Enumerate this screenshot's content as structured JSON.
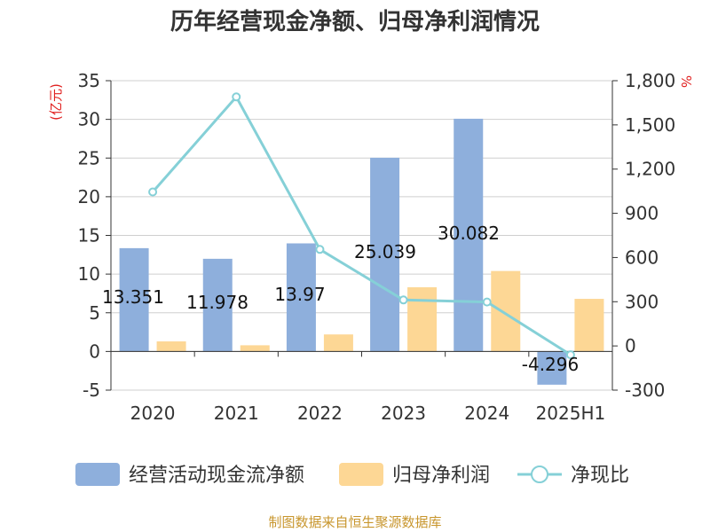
{
  "title": "历年经营现金净额、归母净利润情况",
  "source": "制图数据来自恒生聚源数据库",
  "colors": {
    "cash_flow": "#8eafdc",
    "net_profit": "#fdd795",
    "ratio": "#85d0d7",
    "unit": "#e0201f",
    "source": "#c8962d"
  },
  "chart_data": {
    "type": "bar",
    "categories": [
      "2020",
      "2021",
      "2022",
      "2023",
      "2024",
      "2025H1"
    ],
    "y_left": {
      "unit": "(亿元)",
      "lim": [
        -5,
        35
      ],
      "ticks": [
        "-5",
        "0",
        "5",
        "10",
        "15",
        "20",
        "25",
        "30",
        "35"
      ]
    },
    "y_right": {
      "unit": "%",
      "lim": [
        -300,
        1800
      ],
      "ticks": [
        "-300",
        "0",
        "300",
        "600",
        "900",
        "1,200",
        "1,500",
        "1,800"
      ]
    },
    "series": [
      {
        "name": "经营活动现金流净额",
        "type": "bar",
        "axis": "left",
        "values": [
          13.351,
          11.978,
          13.97,
          25.039,
          30.082,
          -4.296
        ],
        "labels": [
          "13.351",
          "11.978",
          "13.97",
          "25.039",
          "30.082",
          "-4.296"
        ]
      },
      {
        "name": "归母净利润",
        "type": "bar",
        "axis": "left",
        "values": [
          1.3,
          0.8,
          2.2,
          8.3,
          10.4,
          6.8
        ]
      },
      {
        "name": "净现比",
        "type": "line",
        "axis": "right",
        "values": [
          1045,
          1690,
          655,
          312,
          298,
          -60
        ]
      }
    ],
    "grid": true,
    "legend_position": "bottom"
  }
}
